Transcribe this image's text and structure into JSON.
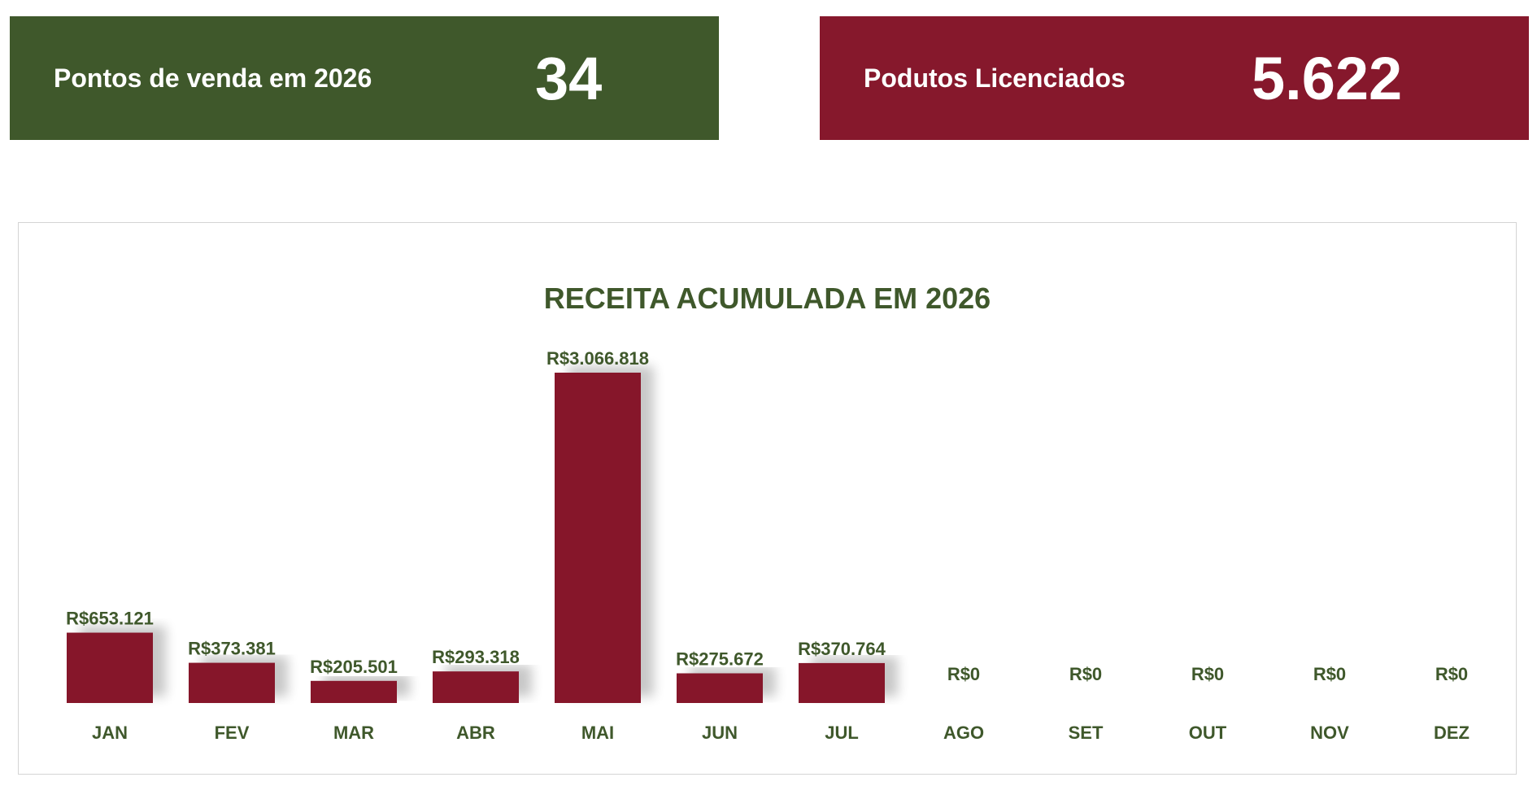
{
  "kpis": {
    "pontos": {
      "label": "Pontos de venda em 2026",
      "value": "34",
      "color": "#3f582b"
    },
    "produtos": {
      "label": "Podutos Licenciados",
      "value": "5.622",
      "color": "#86182c"
    }
  },
  "chart_data": {
    "type": "bar",
    "title": "RECEITA ACUMULADA EM 2026",
    "xlabel": "",
    "ylabel": "",
    "categories": [
      "JAN",
      "FEV",
      "MAR",
      "ABR",
      "MAI",
      "JUN",
      "JUL",
      "AGO",
      "SET",
      "OUT",
      "NOV",
      "DEZ"
    ],
    "values": [
      653121,
      373381,
      205501,
      293318,
      3066818,
      275672,
      370764,
      0,
      0,
      0,
      0,
      0
    ],
    "data_labels": [
      "R$653.121",
      "R$373.381",
      "R$205.501",
      "R$293.318",
      "R$3.066.818",
      "R$275.672",
      "R$370.764",
      "R$0",
      "R$0",
      "R$0",
      "R$0",
      "R$0"
    ],
    "ylim": [
      0,
      3066818
    ],
    "grid": false,
    "legend": "none",
    "bar_color": "#86182c",
    "label_color": "#3f582b"
  }
}
